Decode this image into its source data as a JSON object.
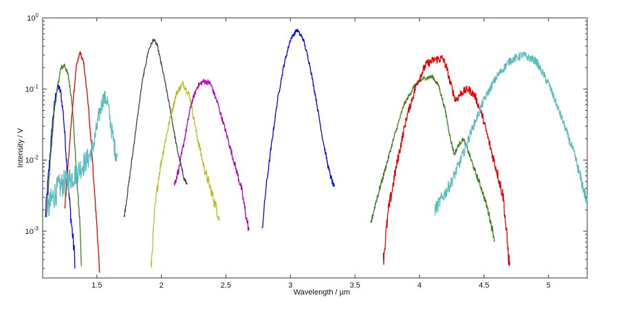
{
  "chart_data": {
    "type": "line",
    "title": "",
    "xlabel": "Wavelength / µm",
    "ylabel": "Intensity / V",
    "xscale": "linear",
    "yscale": "log",
    "xlim": [
      1.08,
      5.3
    ],
    "ylim": [
      0.00022,
      1.0
    ],
    "grid": false,
    "legend": "none",
    "x_ticks": [
      {
        "value": 1.5,
        "label": "1.5"
      },
      {
        "value": 2,
        "label": "2"
      },
      {
        "value": 2.5,
        "label": "2.5"
      },
      {
        "value": 3,
        "label": "3"
      },
      {
        "value": 3.5,
        "label": "3.5"
      },
      {
        "value": 4,
        "label": "4"
      },
      {
        "value": 4.5,
        "label": "4.5"
      },
      {
        "value": 5,
        "label": "5"
      }
    ],
    "y_ticks": [
      {
        "value": 0.001,
        "base": "10",
        "exp": "-3"
      },
      {
        "value": 0.01,
        "base": "10",
        "exp": "-2"
      },
      {
        "value": 0.1,
        "base": "10",
        "exp": "-1"
      },
      {
        "value": 1,
        "base": "10",
        "exp": "0"
      }
    ],
    "series": [
      {
        "color": "#0000ee",
        "noise": 0.12,
        "points": [
          [
            1.1,
            0.0015
          ],
          [
            1.13,
            0.008
          ],
          [
            1.16,
            0.04
          ],
          [
            1.18,
            0.08
          ],
          [
            1.2,
            0.11
          ],
          [
            1.22,
            0.09
          ],
          [
            1.24,
            0.045
          ],
          [
            1.26,
            0.014
          ],
          [
            1.28,
            0.004
          ],
          [
            1.3,
            0.0015
          ],
          [
            1.33,
            0.0004
          ]
        ]
      },
      {
        "color": "#3d7a1c",
        "noise": 0.08,
        "points": [
          [
            1.11,
            0.0015
          ],
          [
            1.14,
            0.01
          ],
          [
            1.17,
            0.05
          ],
          [
            1.2,
            0.12
          ],
          [
            1.22,
            0.19
          ],
          [
            1.25,
            0.22
          ],
          [
            1.28,
            0.15
          ],
          [
            1.31,
            0.06
          ],
          [
            1.33,
            0.015
          ],
          [
            1.35,
            0.004
          ],
          [
            1.37,
            0.0012
          ],
          [
            1.38,
            0.0003
          ]
        ]
      },
      {
        "color": "#e00000",
        "noise": 0.06,
        "points": [
          [
            1.25,
            0.002
          ],
          [
            1.28,
            0.01
          ],
          [
            1.31,
            0.05
          ],
          [
            1.34,
            0.2
          ],
          [
            1.37,
            0.33
          ],
          [
            1.4,
            0.22
          ],
          [
            1.43,
            0.07
          ],
          [
            1.46,
            0.015
          ],
          [
            1.48,
            0.004
          ],
          [
            1.5,
            0.0012
          ],
          [
            1.52,
            0.0003
          ]
        ]
      },
      {
        "color": "#5bbcbe",
        "noise": 0.25,
        "points": [
          [
            1.12,
            0.002
          ],
          [
            1.16,
            0.003
          ],
          [
            1.2,
            0.004
          ],
          [
            1.26,
            0.005
          ],
          [
            1.32,
            0.006
          ],
          [
            1.38,
            0.008
          ],
          [
            1.44,
            0.011
          ],
          [
            1.48,
            0.018
          ],
          [
            1.52,
            0.045
          ],
          [
            1.55,
            0.075
          ],
          [
            1.58,
            0.07
          ],
          [
            1.61,
            0.03
          ],
          [
            1.64,
            0.014
          ],
          [
            1.66,
            0.012
          ]
        ]
      },
      {
        "color": "#404040",
        "noise": 0.05,
        "points": [
          [
            1.71,
            0.0015
          ],
          [
            1.75,
            0.005
          ],
          [
            1.8,
            0.025
          ],
          [
            1.85,
            0.12
          ],
          [
            1.9,
            0.35
          ],
          [
            1.94,
            0.5
          ],
          [
            1.97,
            0.4
          ],
          [
            2.02,
            0.15
          ],
          [
            2.07,
            0.05
          ],
          [
            2.12,
            0.015
          ],
          [
            2.17,
            0.006
          ],
          [
            2.2,
            0.0045
          ]
        ]
      },
      {
        "color": "#bcbc22",
        "noise": 0.1,
        "points": [
          [
            1.92,
            0.0003
          ],
          [
            1.95,
            0.002
          ],
          [
            1.98,
            0.006
          ],
          [
            2.02,
            0.015
          ],
          [
            2.07,
            0.04
          ],
          [
            2.12,
            0.09
          ],
          [
            2.17,
            0.12
          ],
          [
            2.22,
            0.08
          ],
          [
            2.27,
            0.025
          ],
          [
            2.33,
            0.008
          ],
          [
            2.38,
            0.004
          ],
          [
            2.43,
            0.002
          ],
          [
            2.45,
            0.0015
          ]
        ]
      },
      {
        "color": "#b400b4",
        "noise": 0.08,
        "points": [
          [
            2.1,
            0.0045
          ],
          [
            2.14,
            0.008
          ],
          [
            2.18,
            0.02
          ],
          [
            2.23,
            0.06
          ],
          [
            2.28,
            0.11
          ],
          [
            2.33,
            0.13
          ],
          [
            2.38,
            0.12
          ],
          [
            2.44,
            0.06
          ],
          [
            2.5,
            0.025
          ],
          [
            2.56,
            0.01
          ],
          [
            2.62,
            0.004
          ],
          [
            2.66,
            0.0015
          ],
          [
            2.68,
            0.001
          ]
        ]
      },
      {
        "color": "#0000ee",
        "noise": 0.06,
        "points": [
          [
            2.78,
            0.001
          ],
          [
            2.81,
            0.004
          ],
          [
            2.85,
            0.015
          ],
          [
            2.9,
            0.07
          ],
          [
            2.95,
            0.22
          ],
          [
            3.0,
            0.5
          ],
          [
            3.05,
            0.68
          ],
          [
            3.1,
            0.5
          ],
          [
            3.15,
            0.22
          ],
          [
            3.2,
            0.07
          ],
          [
            3.25,
            0.02
          ],
          [
            3.3,
            0.007
          ],
          [
            3.34,
            0.004
          ]
        ]
      },
      {
        "color": "#3d7a1c",
        "noise": 0.06,
        "points": [
          [
            3.62,
            0.0012
          ],
          [
            3.66,
            0.0025
          ],
          [
            3.72,
            0.006
          ],
          [
            3.8,
            0.02
          ],
          [
            3.88,
            0.06
          ],
          [
            3.96,
            0.11
          ],
          [
            4.03,
            0.14
          ],
          [
            4.1,
            0.15
          ],
          [
            4.15,
            0.11
          ],
          [
            4.2,
            0.05
          ],
          [
            4.24,
            0.02
          ],
          [
            4.27,
            0.012
          ],
          [
            4.3,
            0.016
          ],
          [
            4.34,
            0.02
          ],
          [
            4.38,
            0.013
          ],
          [
            4.43,
            0.007
          ],
          [
            4.48,
            0.004
          ],
          [
            4.53,
            0.002
          ],
          [
            4.58,
            0.0008
          ]
        ]
      },
      {
        "color": "#e00000",
        "noise": 0.12,
        "points": [
          [
            3.72,
            0.0004
          ],
          [
            3.76,
            0.002
          ],
          [
            3.82,
            0.008
          ],
          [
            3.9,
            0.04
          ],
          [
            3.98,
            0.12
          ],
          [
            4.05,
            0.22
          ],
          [
            4.12,
            0.26
          ],
          [
            4.18,
            0.27
          ],
          [
            4.21,
            0.2
          ],
          [
            4.24,
            0.12
          ],
          [
            4.28,
            0.07
          ],
          [
            4.33,
            0.09
          ],
          [
            4.38,
            0.1
          ],
          [
            4.43,
            0.08
          ],
          [
            4.49,
            0.04
          ],
          [
            4.55,
            0.015
          ],
          [
            4.6,
            0.007
          ],
          [
            4.65,
            0.003
          ],
          [
            4.68,
            0.0007
          ],
          [
            4.7,
            0.0003
          ]
        ]
      },
      {
        "color": "#5bbcbe",
        "noise": 0.12,
        "points": [
          [
            4.12,
            0.002
          ],
          [
            4.18,
            0.003
          ],
          [
            4.25,
            0.005
          ],
          [
            4.32,
            0.01
          ],
          [
            4.4,
            0.025
          ],
          [
            4.5,
            0.07
          ],
          [
            4.6,
            0.15
          ],
          [
            4.7,
            0.25
          ],
          [
            4.8,
            0.3
          ],
          [
            4.9,
            0.25
          ],
          [
            5.0,
            0.12
          ],
          [
            5.1,
            0.04
          ],
          [
            5.2,
            0.012
          ],
          [
            5.27,
            0.004
          ],
          [
            5.3,
            0.0025
          ]
        ]
      }
    ]
  }
}
